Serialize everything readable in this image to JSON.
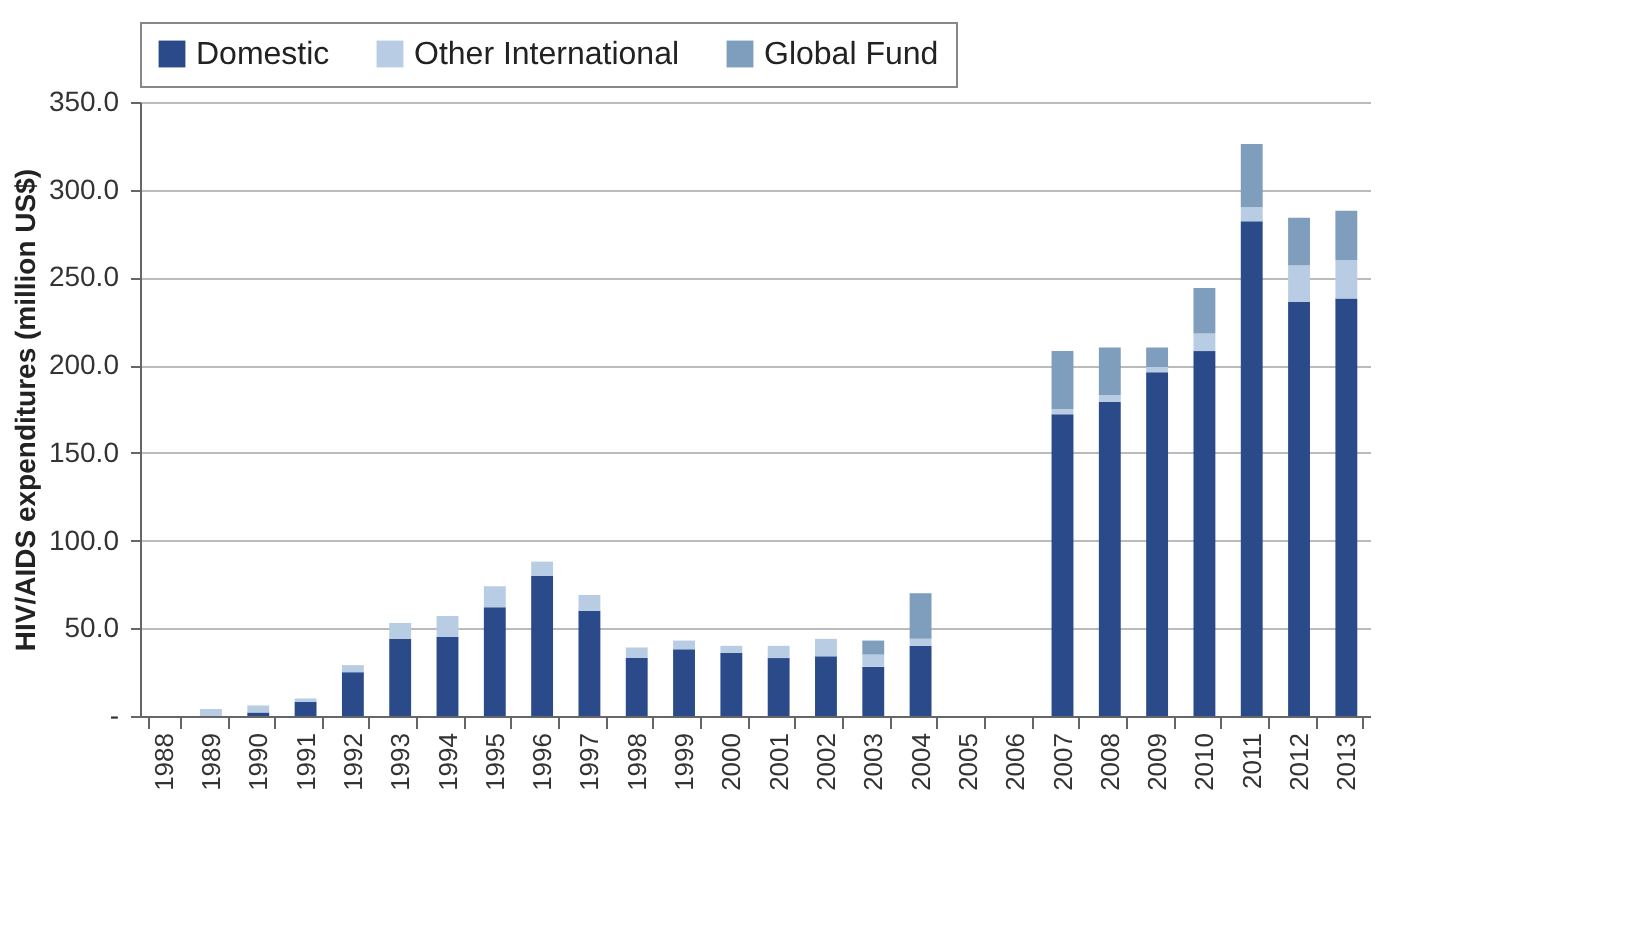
{
  "chart_data": {
    "type": "bar",
    "stacked": true,
    "ylabel": "HIV/AIDS expenditures (million US$)",
    "categories": [
      "1988",
      "1989",
      "1990",
      "1991",
      "1992",
      "1993",
      "1994",
      "1995",
      "1996",
      "1997",
      "1998",
      "1999",
      "2000",
      "2001",
      "2002",
      "2003",
      "2004",
      "2005",
      "2006",
      "2007",
      "2008",
      "2009",
      "2010",
      "2011",
      "2012",
      "2013"
    ],
    "series": [
      {
        "name": "Domestic",
        "color": "#2b4a8a",
        "values": [
          0,
          0,
          2,
          8,
          25,
          44,
          45,
          62,
          80,
          60,
          33,
          38,
          36,
          33,
          34,
          28,
          40,
          0,
          0,
          172,
          179,
          196,
          208,
          282,
          236,
          238
        ]
      },
      {
        "name": "Other International",
        "color": "#b8cde3",
        "values": [
          0,
          4,
          4,
          2,
          4,
          9,
          12,
          12,
          8,
          9,
          6,
          5,
          4,
          7,
          10,
          7,
          4,
          0,
          0,
          3,
          4,
          3,
          10,
          8,
          21,
          22
        ]
      },
      {
        "name": "Global Fund",
        "color": "#7f9dbd",
        "values": [
          0,
          0,
          0,
          0,
          0,
          0,
          0,
          0,
          0,
          0,
          0,
          0,
          0,
          0,
          0,
          8,
          26,
          0,
          0,
          33,
          27,
          11,
          26,
          36,
          27,
          28
        ]
      }
    ],
    "ylim": [
      0,
      350
    ],
    "yticks": [
      {
        "value": 0,
        "label": "-"
      },
      {
        "value": 50,
        "label": "50.0"
      },
      {
        "value": 100,
        "label": "100.0"
      },
      {
        "value": 150,
        "label": "150.0"
      },
      {
        "value": 200,
        "label": "200.0"
      },
      {
        "value": 250,
        "label": "250.0"
      },
      {
        "value": 300,
        "label": "300.0"
      },
      {
        "value": 350,
        "label": "350.0"
      }
    ],
    "grid": "y",
    "legend": "top"
  }
}
